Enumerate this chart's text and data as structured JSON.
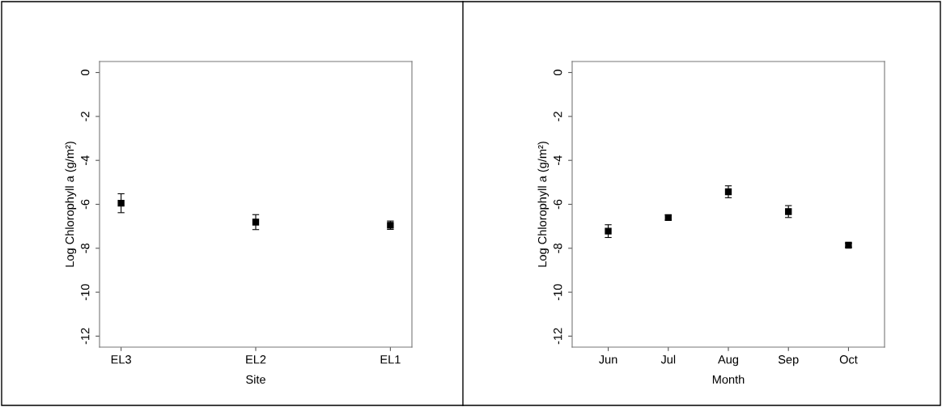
{
  "chart_data": [
    {
      "type": "scatter",
      "xlabel": "Site",
      "ylabel": "Log Chlorophyll a (g/m²)",
      "categories": [
        "EL3",
        "EL2",
        "EL1"
      ],
      "values": [
        -5.95,
        -6.81,
        -6.95
      ],
      "errors": [
        0.43,
        0.34,
        0.19
      ],
      "color": "#000000",
      "marker": "square",
      "ylim": [
        -12.5,
        0.5
      ],
      "yticks": [
        0,
        -2,
        -4,
        -6,
        -8,
        -10,
        -12
      ],
      "grid": false,
      "legend": false
    },
    {
      "type": "scatter",
      "xlabel": "Month",
      "ylabel": "Log Chlorophyll a (g/m²)",
      "categories": [
        "Jun",
        "Jul",
        "Aug",
        "Sep",
        "Oct"
      ],
      "values": [
        -7.22,
        -6.6,
        -5.43,
        -6.33,
        -7.86
      ],
      "errors": [
        0.29,
        0.12,
        0.27,
        0.27,
        0.09
      ],
      "color": "#000000",
      "marker": "square",
      "ylim": [
        -12.5,
        0.5
      ],
      "yticks": [
        0,
        -2,
        -4,
        -6,
        -8,
        -10,
        -12
      ],
      "grid": false,
      "legend": false
    }
  ]
}
